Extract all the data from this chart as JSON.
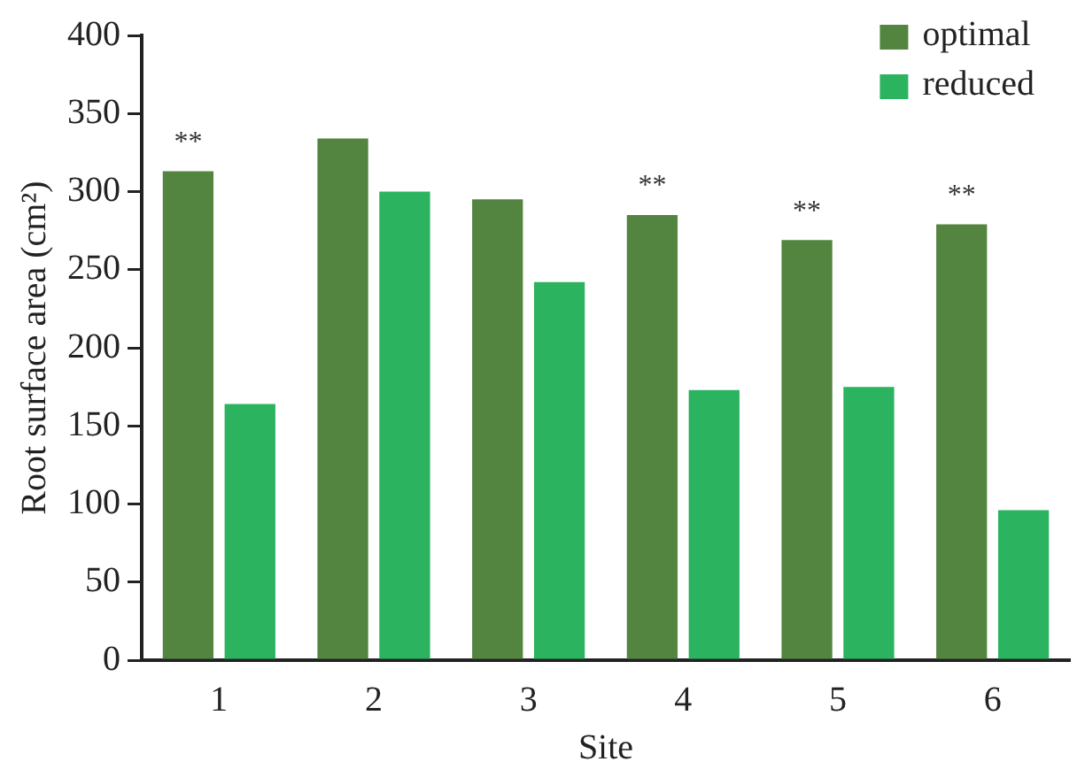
{
  "chart_data": {
    "type": "bar",
    "xlabel": "Site",
    "ylabel": "Root surface area (cm²)",
    "categories": [
      "1",
      "2",
      "3",
      "4",
      "5",
      "6"
    ],
    "series": [
      {
        "name": "optimal",
        "color": "#538540",
        "values": [
          313,
          334,
          295,
          285,
          269,
          279
        ]
      },
      {
        "name": "reduced",
        "color": "#2bb360",
        "values": [
          164,
          300,
          242,
          173,
          175,
          96
        ]
      }
    ],
    "ylim": [
      0,
      400
    ],
    "yticks": [
      0,
      50,
      100,
      150,
      200,
      250,
      300,
      350,
      400
    ],
    "grid": false,
    "legend": "top right",
    "annotations": [
      {
        "text": "**",
        "x": "1",
        "y": 313
      },
      {
        "text": "**",
        "x": "4",
        "y": 285
      },
      {
        "text": "**",
        "x": "5",
        "y": 269
      },
      {
        "text": "**",
        "x": "6",
        "y": 279
      }
    ]
  }
}
